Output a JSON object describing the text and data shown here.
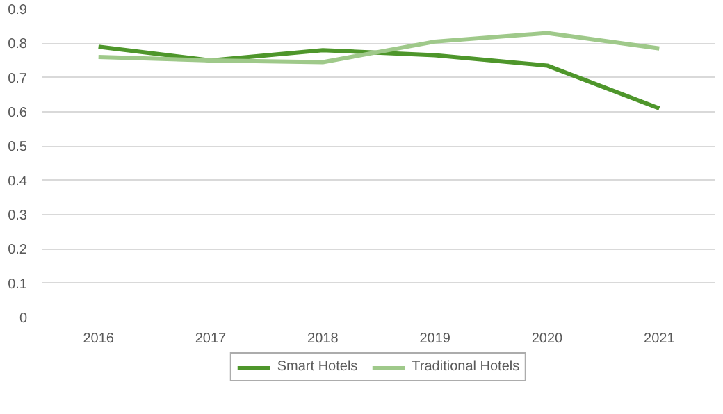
{
  "chart_data": {
    "type": "line",
    "categories": [
      "2016",
      "2017",
      "2018",
      "2019",
      "2020",
      "2021"
    ],
    "series": [
      {
        "name": "Smart Hotels",
        "color": "#4e962b",
        "values": [
          0.79,
          0.75,
          0.78,
          0.765,
          0.735,
          0.61
        ]
      },
      {
        "name": "Traditional Hotels",
        "color": "#9fc98a",
        "values": [
          0.76,
          0.75,
          0.745,
          0.805,
          0.83,
          0.785
        ]
      }
    ],
    "ylim": [
      0,
      0.9
    ],
    "yticks": [
      0,
      0.1,
      0.2,
      0.3,
      0.4,
      0.5,
      0.6,
      0.7,
      0.8,
      0.9
    ],
    "grid": "y",
    "legend": "bottom",
    "line_style": "solid",
    "marker": "none"
  }
}
